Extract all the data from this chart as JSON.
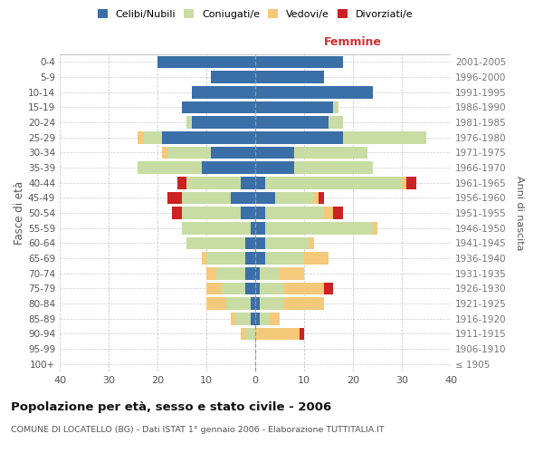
{
  "age_groups": [
    "100+",
    "95-99",
    "90-94",
    "85-89",
    "80-84",
    "75-79",
    "70-74",
    "65-69",
    "60-64",
    "55-59",
    "50-54",
    "45-49",
    "40-44",
    "35-39",
    "30-34",
    "25-29",
    "20-24",
    "15-19",
    "10-14",
    "5-9",
    "0-4"
  ],
  "birth_years": [
    "≤ 1905",
    "1906-1910",
    "1911-1915",
    "1916-1920",
    "1921-1925",
    "1926-1930",
    "1931-1935",
    "1936-1940",
    "1941-1945",
    "1946-1950",
    "1951-1955",
    "1956-1960",
    "1961-1965",
    "1966-1970",
    "1971-1975",
    "1976-1980",
    "1981-1985",
    "1986-1990",
    "1991-1995",
    "1996-2000",
    "2001-2005"
  ],
  "males": {
    "celibi": [
      0,
      0,
      0,
      1,
      1,
      2,
      2,
      2,
      2,
      1,
      3,
      5,
      3,
      11,
      9,
      19,
      13,
      15,
      13,
      9,
      20
    ],
    "coniugati": [
      0,
      0,
      2,
      3,
      5,
      5,
      6,
      8,
      12,
      14,
      12,
      10,
      11,
      13,
      9,
      4,
      1,
      0,
      0,
      0,
      0
    ],
    "vedovi": [
      0,
      0,
      1,
      1,
      4,
      3,
      2,
      1,
      0,
      0,
      0,
      0,
      0,
      0,
      1,
      1,
      0,
      0,
      0,
      0,
      0
    ],
    "divorziati": [
      0,
      0,
      0,
      0,
      0,
      0,
      0,
      0,
      0,
      0,
      2,
      3,
      2,
      0,
      0,
      0,
      0,
      0,
      0,
      0,
      0
    ]
  },
  "females": {
    "nubili": [
      0,
      0,
      0,
      1,
      1,
      1,
      1,
      2,
      2,
      2,
      2,
      4,
      2,
      8,
      8,
      18,
      15,
      16,
      24,
      14,
      18
    ],
    "coniugate": [
      0,
      0,
      0,
      2,
      5,
      5,
      4,
      8,
      9,
      22,
      12,
      8,
      28,
      16,
      15,
      17,
      3,
      1,
      0,
      0,
      0
    ],
    "vedove": [
      0,
      0,
      9,
      2,
      8,
      8,
      5,
      5,
      1,
      1,
      2,
      1,
      1,
      0,
      0,
      0,
      0,
      0,
      0,
      0,
      0
    ],
    "divorziate": [
      0,
      0,
      1,
      0,
      0,
      2,
      0,
      0,
      0,
      0,
      2,
      1,
      2,
      0,
      0,
      0,
      0,
      0,
      0,
      0,
      0
    ]
  },
  "colors": {
    "celibi_nubili": "#3a6fa8",
    "coniugati": "#c8dca4",
    "vedovi": "#f5c97a",
    "divorziati": "#cc2222"
  },
  "title": "Popolazione per età, sesso e stato civile - 2006",
  "subtitle": "COMUNE DI LOCATELLO (BG) - Dati ISTAT 1° gennaio 2006 - Elaborazione TUTTITALIA.IT",
  "xlabel_right": "Femmine",
  "ylabel_left": "Fasce di età",
  "ylabel_right": "Anni di nascita",
  "xlim": 40,
  "background_color": "#ffffff",
  "legend_labels": [
    "Celibi/Nubili",
    "Coniugati/e",
    "Vedovi/e",
    "Divorziati/e"
  ]
}
